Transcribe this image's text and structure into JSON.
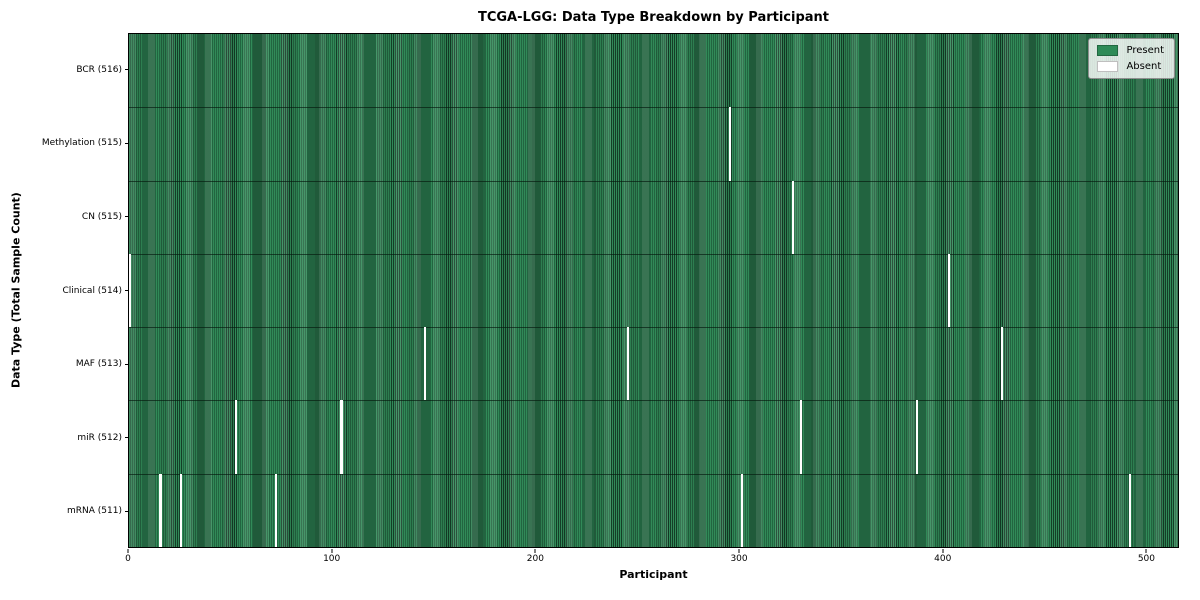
{
  "title": "TCGA-LGG: Data Type Breakdown by Participant",
  "colors": {
    "present": "#2e8b57",
    "absent": "#ffffff",
    "bar_edge": "#143d27",
    "legend_border": "#8f8f8f"
  },
  "legend": {
    "present_label": "Present",
    "absent_label": "Absent"
  },
  "chart_data": {
    "type": "heatmap",
    "title": "TCGA-LGG: Data Type Breakdown by Participant",
    "xlabel": "Participant",
    "ylabel": "Data Type (Total Sample Count)",
    "x_range": [
      0,
      516
    ],
    "x_ticks": [
      0,
      100,
      200,
      300,
      400,
      500
    ],
    "grid": false,
    "legend_position": "upper right",
    "legend_entries": [
      {
        "label": "Present",
        "color": "#2e8b57"
      },
      {
        "label": "Absent",
        "color": "#ffffff"
      }
    ],
    "n_participants": 516,
    "rows": [
      {
        "label": "BCR (516)",
        "data_type": "BCR",
        "present_count": 516,
        "absent_participants": []
      },
      {
        "label": "Methylation (515)",
        "data_type": "Methylation",
        "present_count": 515,
        "absent_participants": [
          295
        ]
      },
      {
        "label": "CN (515)",
        "data_type": "CN",
        "present_count": 515,
        "absent_participants": [
          326
        ]
      },
      {
        "label": "Clinical (514)",
        "data_type": "Clinical",
        "present_count": 514,
        "absent_participants": [
          0,
          403
        ]
      },
      {
        "label": "MAF (513)",
        "data_type": "MAF",
        "present_count": 513,
        "absent_participants": [
          145,
          245,
          429
        ]
      },
      {
        "label": "miR (512)",
        "data_type": "miR",
        "present_count": 512,
        "absent_participants": [
          52,
          104,
          330,
          387
        ]
      },
      {
        "label": "mRNA (511)",
        "data_type": "mRNA",
        "present_count": 511,
        "absent_participants": [
          15,
          25,
          72,
          301,
          492
        ]
      }
    ]
  }
}
